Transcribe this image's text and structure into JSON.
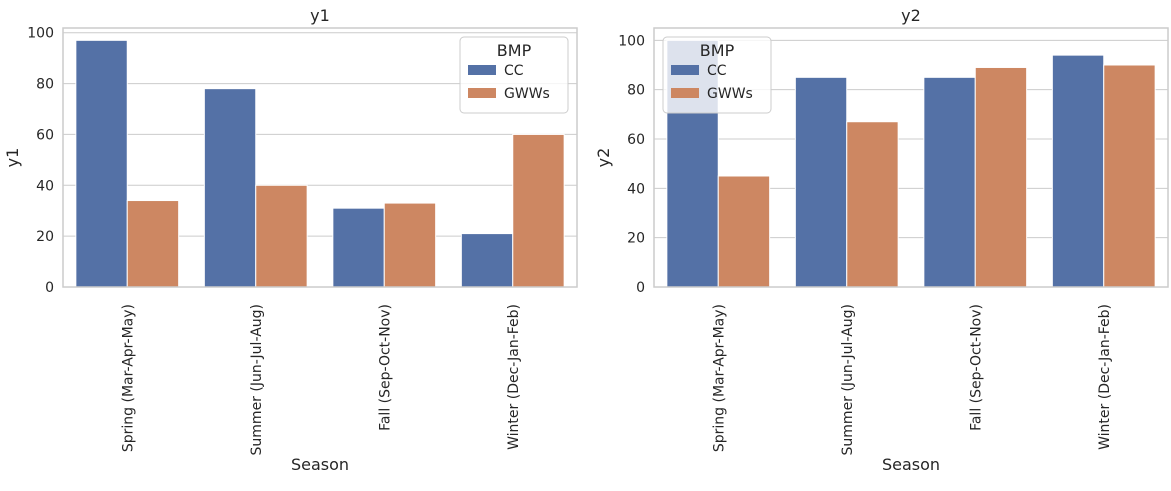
{
  "chart_data": [
    {
      "type": "bar",
      "title": "y1",
      "xlabel": "Season",
      "ylabel": "y1",
      "categories": [
        "Spring (Mar-Apr-May)",
        "Summer (Jun-Jul-Aug)",
        "Fall (Sep-Oct-Nov)",
        "Winter (Dec-Jan-Feb)"
      ],
      "series": [
        {
          "name": "CC",
          "values": [
            97,
            78,
            31,
            21
          ]
        },
        {
          "name": "GWWs",
          "values": [
            34,
            40,
            33,
            60
          ]
        }
      ],
      "ylim": [
        0,
        101.85
      ],
      "yticks": [
        "0",
        "20",
        "40",
        "60",
        "80",
        "100"
      ],
      "legend": {
        "title": "BMP",
        "placement": "top-right"
      },
      "grid": "horizontal"
    },
    {
      "type": "bar",
      "title": "y2",
      "xlabel": "Season",
      "ylabel": "y2",
      "categories": [
        "Spring (Mar-Apr-May)",
        "Summer (Jun-Jul-Aug)",
        "Fall (Sep-Oct-Nov)",
        "Winter (Dec-Jan-Feb)"
      ],
      "series": [
        {
          "name": "CC",
          "values": [
            100,
            85,
            85,
            94
          ]
        },
        {
          "name": "GWWs",
          "values": [
            45,
            67,
            89,
            90
          ]
        }
      ],
      "ylim": [
        0,
        105
      ],
      "yticks": [
        "0",
        "20",
        "40",
        "60",
        "80",
        "100"
      ],
      "legend": {
        "title": "BMP",
        "placement": "top-left"
      },
      "grid": "horizontal"
    }
  ],
  "colors": {
    "CC": "#5471a6",
    "GWWs": "#cd8762",
    "grid": "#cccccc",
    "spine": "#cccccc"
  }
}
